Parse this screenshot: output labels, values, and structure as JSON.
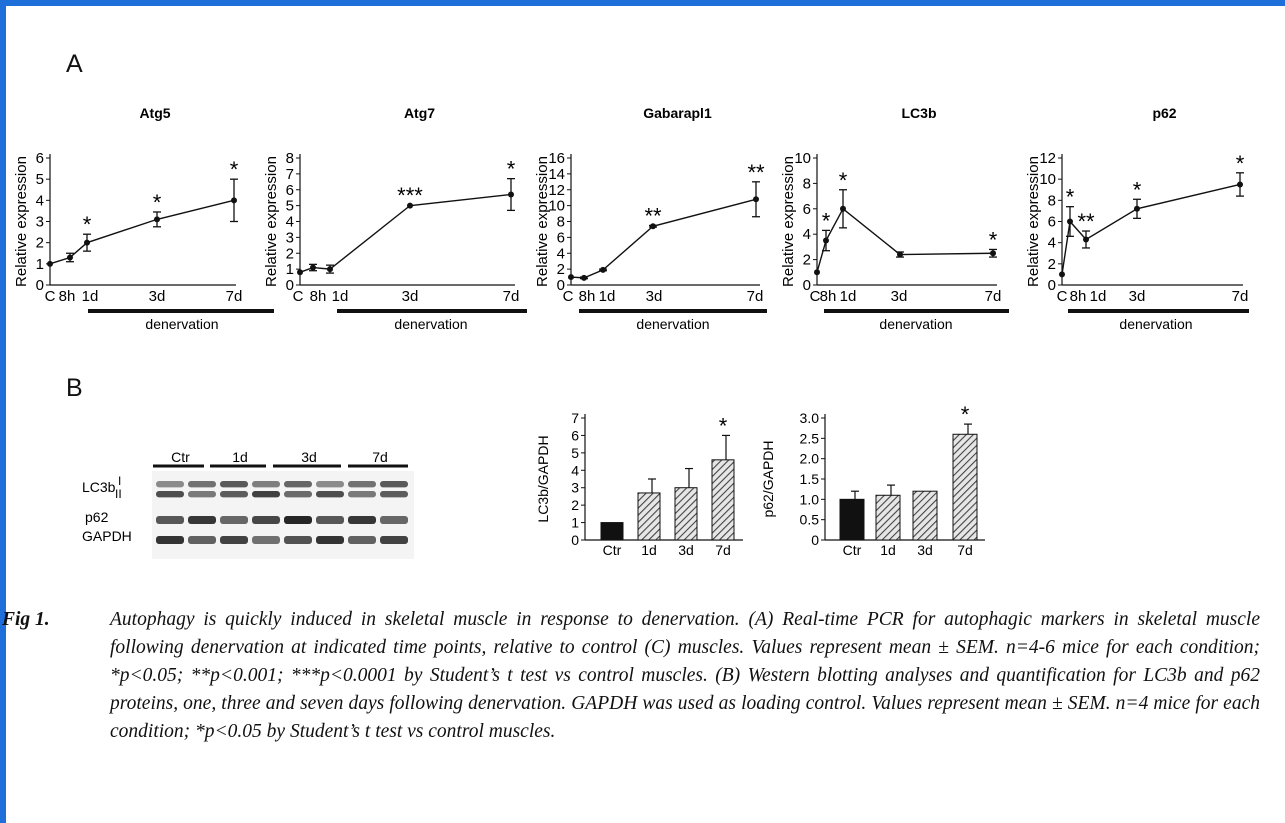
{
  "figure": {
    "panel_a_letter": "A",
    "panel_b_letter": "B",
    "fig_label": "Fig 1.",
    "caption": "Autophagy is quickly induced in skeletal muscle in response to denervation. (A) Real-time PCR for autophagic markers in skeletal muscle following denervation at indicated time points, relative to control (C) muscles. Values represent mean ± SEM. n=4-6 mice for each condition; *p<0.05; **p<0.001; ***p<0.0001 by Student’s t test vs control muscles. (B) Western blotting analyses and quantification for LC3b and p62 proteins, one, three and seven days following denervation. GAPDH was used as loading control. Values represent mean ± SEM. n=4 mice for each condition; *p<0.05 by Student’s t test vs control muscles."
  },
  "colors": {
    "frame_border": "#1e6fd9",
    "line": "#111111",
    "bar_ctr": "#111111",
    "bar_hatch": "#444444"
  },
  "chart_data": [
    {
      "type": "line",
      "title": "Atg5",
      "ylabel": "Relative expression",
      "xlabel": "denervation",
      "ylim": [
        0,
        6
      ],
      "yticks": [
        0,
        1,
        2,
        3,
        4,
        5,
        6
      ],
      "x_labels": [
        "C",
        "8h",
        "1d",
        "3d",
        "7d"
      ],
      "x": [
        "C",
        "8h",
        "1d",
        "3d",
        "7d"
      ],
      "values": [
        1.0,
        1.3,
        2.0,
        3.1,
        4.0
      ],
      "errors": [
        0.05,
        0.2,
        0.4,
        0.35,
        1.0
      ],
      "significance": [
        "",
        "",
        "*",
        "*",
        "*"
      ]
    },
    {
      "type": "line",
      "title": "Atg7",
      "ylabel": "Relative expression",
      "xlabel": "denervation",
      "ylim": [
        0,
        8
      ],
      "yticks": [
        0,
        1,
        2,
        3,
        4,
        5,
        6,
        7,
        8
      ],
      "x_labels": [
        "C",
        "8h",
        "1d",
        "3d",
        "7d"
      ],
      "x": [
        "C",
        "8h",
        "1d",
        "3d",
        "7d"
      ],
      "values": [
        0.8,
        1.1,
        1.0,
        5.0,
        5.7
      ],
      "errors": [
        0.05,
        0.2,
        0.25,
        0.05,
        1.0
      ],
      "significance": [
        "",
        "",
        "",
        "***",
        "*"
      ]
    },
    {
      "type": "line",
      "title": "Gabarapl1",
      "ylabel": "Relative expression",
      "xlabel": "denervation",
      "ylim": [
        0,
        16
      ],
      "yticks": [
        0,
        2,
        4,
        6,
        8,
        10,
        12,
        14,
        16
      ],
      "x_labels": [
        "C",
        "8h",
        "1d",
        "3d",
        "7d"
      ],
      "x": [
        "C",
        "8h",
        "1d",
        "3d",
        "7d"
      ],
      "values": [
        1.0,
        0.9,
        1.9,
        7.4,
        10.8
      ],
      "errors": [
        0.05,
        0.1,
        0.1,
        0.1,
        2.2
      ],
      "significance": [
        "",
        "",
        "",
        "**",
        "**"
      ]
    },
    {
      "type": "line",
      "title": "LC3b",
      "ylabel": "Relative expression",
      "xlabel": "denervation",
      "ylim": [
        0,
        10
      ],
      "yticks": [
        0,
        2,
        4,
        6,
        8,
        10
      ],
      "x_labels": [
        "C",
        "8h",
        "1d",
        "3d",
        "7d"
      ],
      "x": [
        "C",
        "8h",
        "1d",
        "3d",
        "7d"
      ],
      "values": [
        1.0,
        3.5,
        6.0,
        2.4,
        2.5
      ],
      "errors": [
        0.05,
        0.8,
        1.5,
        0.2,
        0.3
      ],
      "significance": [
        "",
        "*",
        "*",
        "",
        "*"
      ]
    },
    {
      "type": "line",
      "title": "p62",
      "ylabel": "Relative expression",
      "xlabel": "denervation",
      "ylim": [
        0,
        12
      ],
      "yticks": [
        0,
        2,
        4,
        6,
        8,
        10,
        12
      ],
      "x_labels": [
        "C",
        "8h",
        "1d",
        "3d",
        "7d"
      ],
      "x": [
        "C",
        "8h",
        "1d",
        "3d",
        "7d"
      ],
      "values": [
        1.0,
        6.0,
        4.3,
        7.2,
        9.5
      ],
      "errors": [
        0.05,
        1.4,
        0.8,
        0.9,
        1.1
      ],
      "significance": [
        "",
        "*",
        "**",
        "*",
        "*"
      ]
    },
    {
      "type": "bar",
      "ylabel": "LC3b/GAPDH",
      "ylim": [
        0,
        7
      ],
      "yticks": [
        0,
        1,
        2,
        3,
        4,
        5,
        6,
        7
      ],
      "categories": [
        "Ctr",
        "1d",
        "3d",
        "7d"
      ],
      "values": [
        1.0,
        2.7,
        3.0,
        4.6
      ],
      "errors": [
        0.05,
        0.8,
        1.1,
        1.4
      ],
      "significance": [
        "",
        "",
        "",
        "*"
      ]
    },
    {
      "type": "bar",
      "ylabel": "p62/GAPDH",
      "ylim": [
        0,
        3.0
      ],
      "yticks": [
        "0",
        "0.5",
        "1.0",
        "1.5",
        "2.0",
        "2.5",
        "3.0"
      ],
      "categories": [
        "Ctr",
        "1d",
        "3d",
        "7d"
      ],
      "values": [
        1.0,
        1.1,
        1.2,
        2.6
      ],
      "errors": [
        0.2,
        0.25,
        0.05,
        0.25
      ],
      "significance": [
        "",
        "",
        "",
        "*"
      ]
    }
  ],
  "western_blot": {
    "groups": [
      "Ctr",
      "1d",
      "3d",
      "7d"
    ],
    "rows": [
      "LC3b",
      "p62",
      "GAPDH"
    ],
    "band_markers": [
      "I",
      "II"
    ]
  }
}
